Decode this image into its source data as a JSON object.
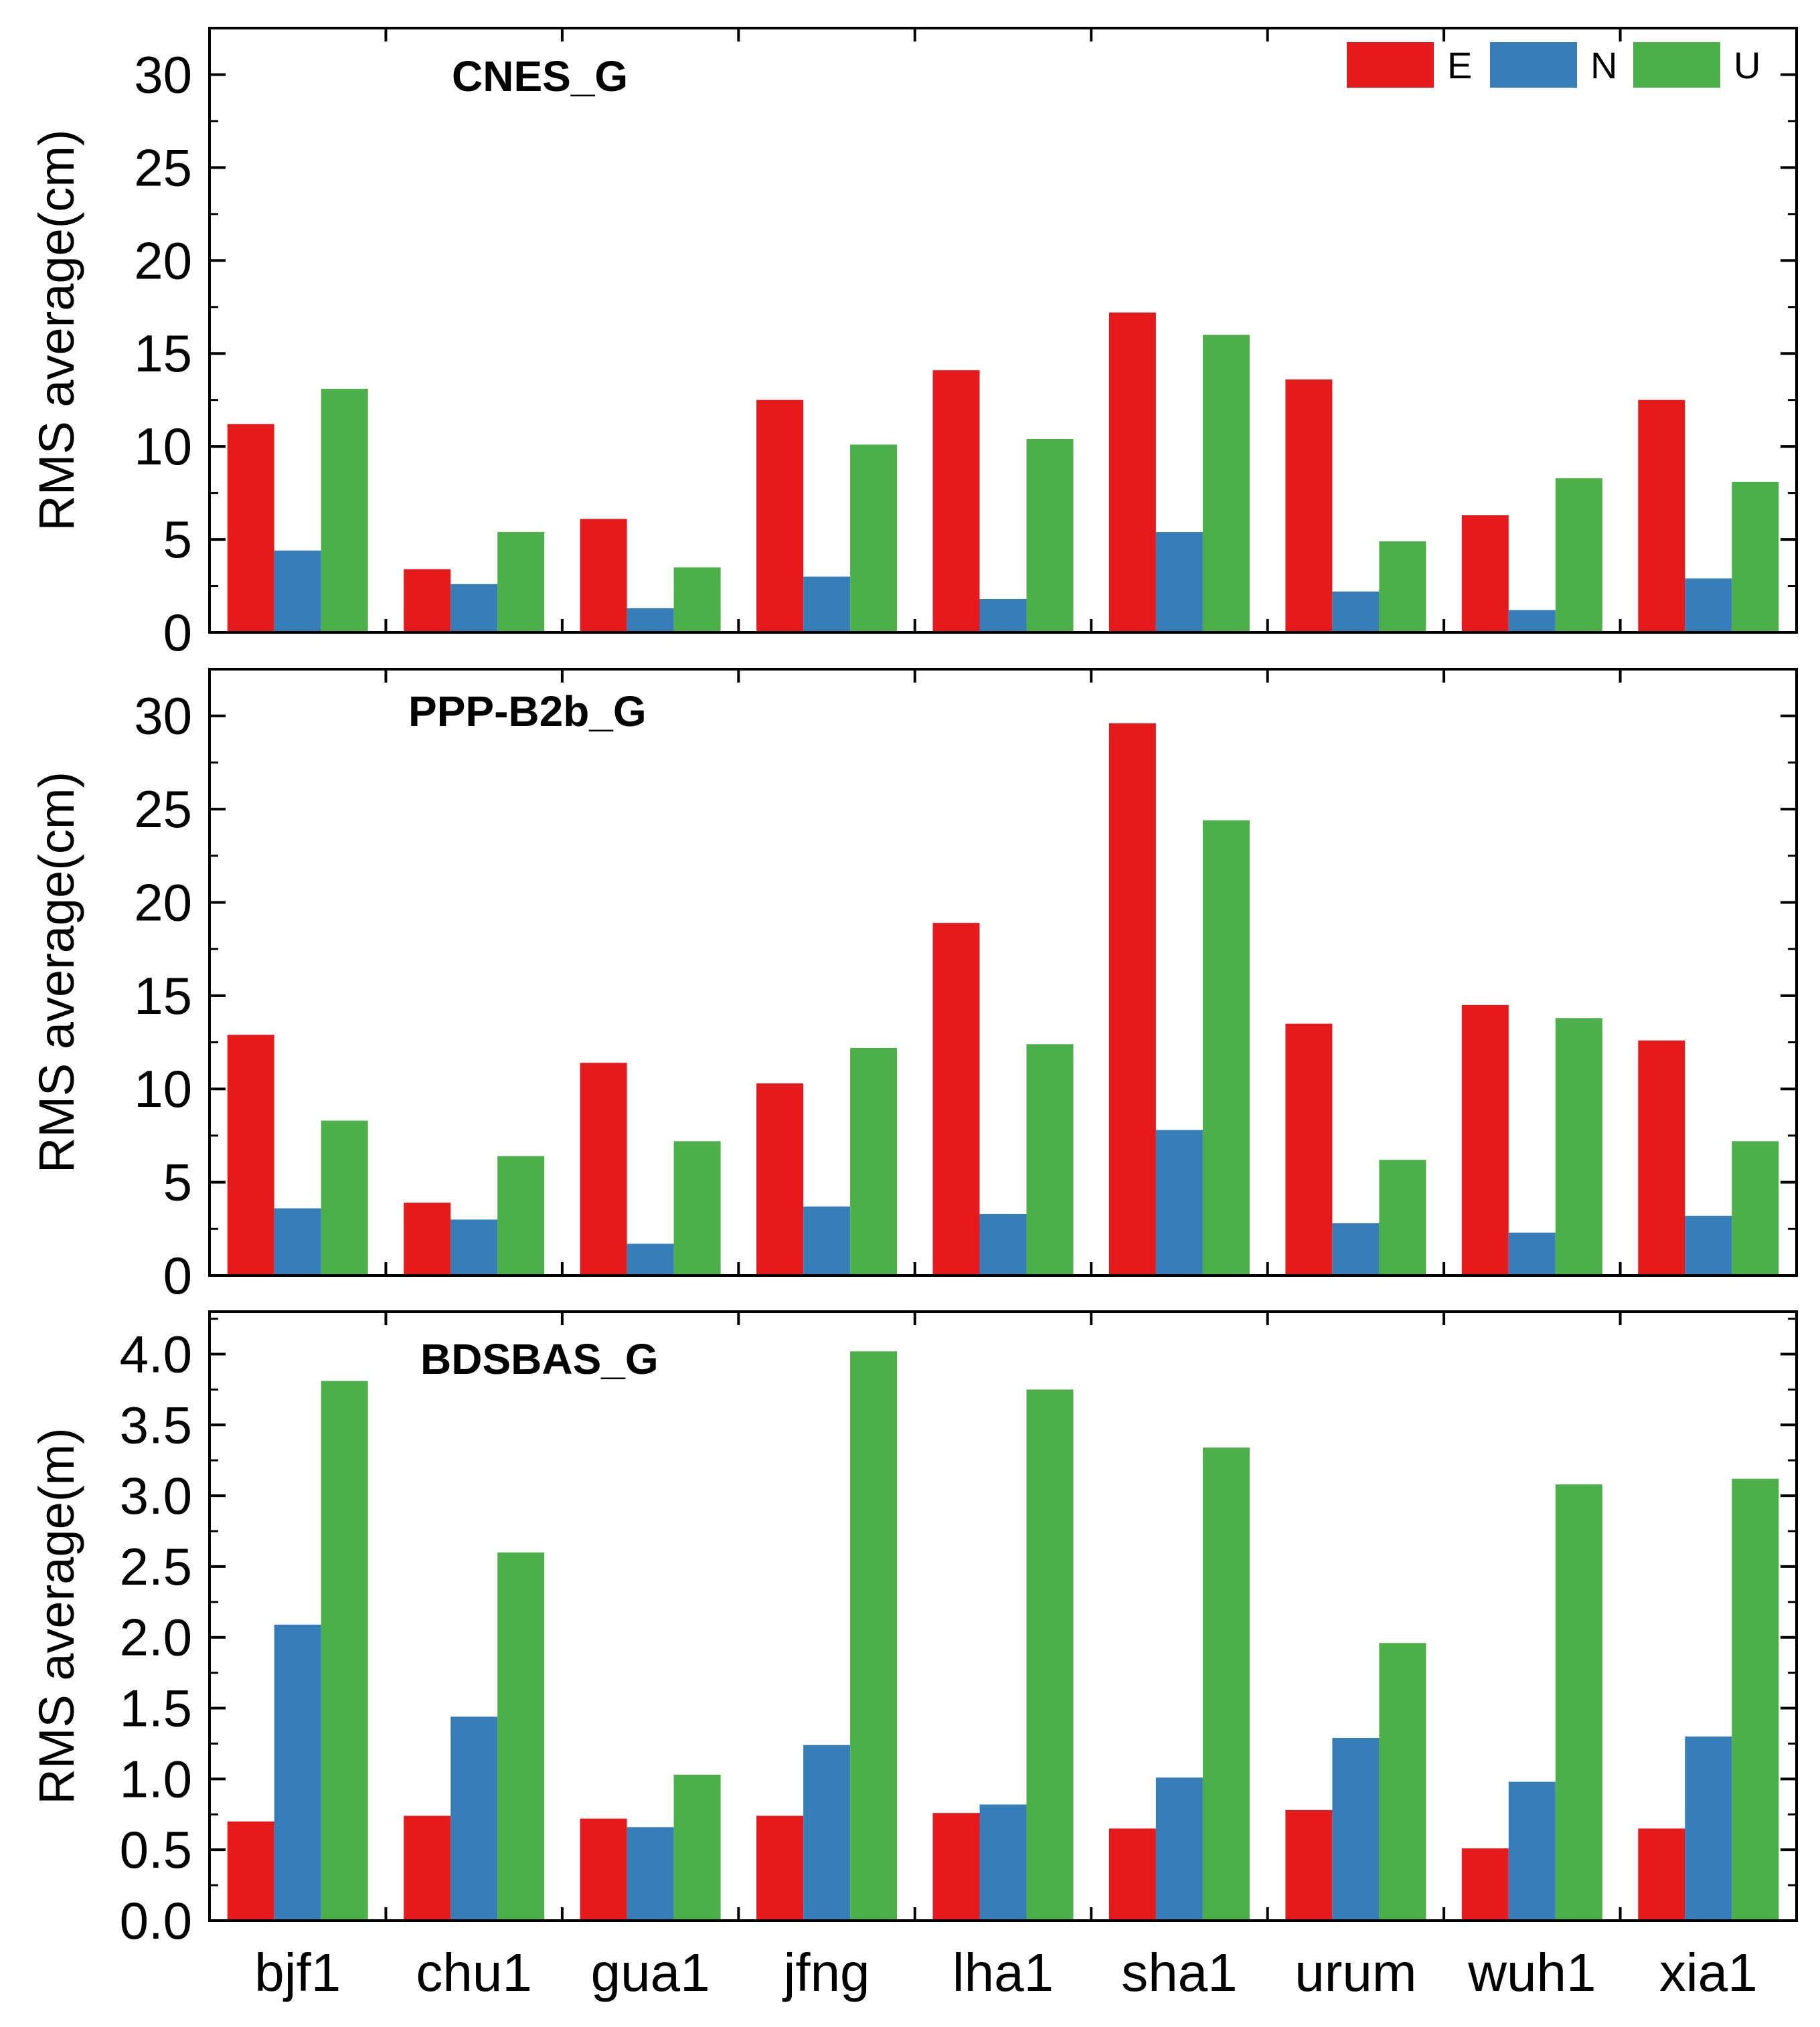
{
  "colors": {
    "E": "#e41a1c",
    "N": "#377eb8",
    "U": "#4daf4a"
  },
  "legend": [
    "E",
    "N",
    "U"
  ],
  "chart_data": [
    {
      "type": "bar",
      "title": "CNES_G",
      "ylabel": "RMS average(cm)",
      "xlabel": "",
      "ylim": [
        0,
        32.5
      ],
      "yticks": [
        "0",
        "5",
        "10",
        "15",
        "20",
        "25",
        "30"
      ],
      "categories": [
        "bjf1",
        "chu1",
        "gua1",
        "jfng",
        "lha1",
        "sha1",
        "urum",
        "wuh1",
        "xia1"
      ],
      "series": [
        {
          "name": "E",
          "values": [
            11.2,
            3.4,
            6.1,
            12.5,
            14.1,
            17.2,
            13.6,
            6.3,
            12.5
          ]
        },
        {
          "name": "N",
          "values": [
            4.4,
            2.6,
            1.3,
            3.0,
            1.8,
            5.4,
            2.2,
            1.2,
            2.9
          ]
        },
        {
          "name": "U",
          "values": [
            13.1,
            5.4,
            3.5,
            10.1,
            10.4,
            16.0,
            4.9,
            8.3,
            8.1
          ]
        }
      ]
    },
    {
      "type": "bar",
      "title": "PPP-B2b_G",
      "ylabel": "RMS average(cm)",
      "xlabel": "",
      "ylim": [
        0,
        32.5
      ],
      "yticks": [
        "0",
        "5",
        "10",
        "15",
        "20",
        "25",
        "30"
      ],
      "categories": [
        "bjf1",
        "chu1",
        "gua1",
        "jfng",
        "lha1",
        "sha1",
        "urum",
        "wuh1",
        "xia1"
      ],
      "series": [
        {
          "name": "E",
          "values": [
            12.9,
            3.9,
            11.4,
            10.3,
            18.9,
            29.6,
            13.5,
            14.5,
            12.6
          ]
        },
        {
          "name": "N",
          "values": [
            3.6,
            3.0,
            1.7,
            3.7,
            3.3,
            7.8,
            2.8,
            2.3,
            3.2
          ]
        },
        {
          "name": "U",
          "values": [
            8.3,
            6.4,
            7.2,
            12.2,
            12.4,
            24.4,
            6.2,
            13.8,
            7.2
          ]
        }
      ]
    },
    {
      "type": "bar",
      "title": "BDSBAS_G",
      "ylabel": "RMS average(m)",
      "xlabel": "",
      "ylim": [
        0,
        4.3
      ],
      "yticks": [
        "0.0",
        "0.5",
        "1.0",
        "1.5",
        "2.0",
        "2.5",
        "3.0",
        "3.5",
        "4.0"
      ],
      "categories": [
        "bjf1",
        "chu1",
        "gua1",
        "jfng",
        "lha1",
        "sha1",
        "urum",
        "wuh1",
        "xia1"
      ],
      "series": [
        {
          "name": "E",
          "values": [
            0.7,
            0.74,
            0.72,
            0.74,
            0.76,
            0.65,
            0.78,
            0.51,
            0.65
          ]
        },
        {
          "name": "N",
          "values": [
            2.09,
            1.44,
            0.66,
            1.24,
            0.82,
            1.01,
            1.29,
            0.98,
            1.3
          ]
        },
        {
          "name": "U",
          "values": [
            3.81,
            2.6,
            1.03,
            4.02,
            3.75,
            3.34,
            1.96,
            3.08,
            3.12
          ]
        }
      ]
    }
  ]
}
